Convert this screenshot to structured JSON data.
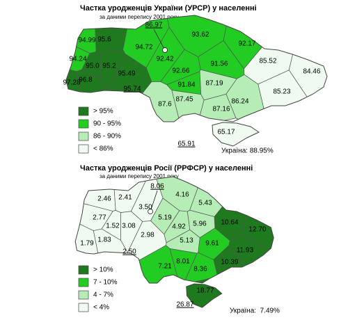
{
  "maps": [
    {
      "title": "Частка уродженців України (УРСР) у населенні",
      "subtitle": "за даними перепису 2001 року",
      "legend": [
        {
          "label": "> 95%",
          "color": "#1f7a1f"
        },
        {
          "label": "90 - 95%",
          "color": "#22cc22"
        },
        {
          "label": "86 - 90%",
          "color": "#b6ecb6"
        },
        {
          "label": "< 86%",
          "color": "#f0faf0"
        }
      ],
      "regions": [
        {
          "label": "94.99",
          "color": "#22cc22"
        },
        {
          "label": "95.6",
          "color": "#1f7a1f"
        },
        {
          "label": "93.62",
          "color": "#22cc22"
        },
        {
          "label": "92.17",
          "color": "#22cc22"
        },
        {
          "label": "94.72",
          "color": "#22cc22"
        },
        {
          "label": "94.24",
          "color": "#22cc22"
        },
        {
          "label": "95.0",
          "color": "#1f7a1f"
        },
        {
          "label": "95.2",
          "color": "#1f7a1f"
        },
        {
          "label": "92.42",
          "color": "#22cc22"
        },
        {
          "label": "91.56",
          "color": "#22cc22"
        },
        {
          "label": "85.52",
          "color": "#f0faf0"
        },
        {
          "label": "92.66",
          "color": "#22cc22"
        },
        {
          "label": "84.46",
          "color": "#f0faf0"
        },
        {
          "label": "97.28",
          "color": "#1f7a1f"
        },
        {
          "label": "96.8",
          "color": "#1f7a1f"
        },
        {
          "label": "95.49",
          "color": "#1f7a1f"
        },
        {
          "label": "91.84",
          "color": "#22cc22"
        },
        {
          "label": "87.19",
          "color": "#b6ecb6"
        },
        {
          "label": "85.23",
          "color": "#f0faf0"
        },
        {
          "label": "87.45",
          "color": "#b6ecb6"
        },
        {
          "label": "87.6",
          "color": "#b6ecb6"
        },
        {
          "label": "86.24",
          "color": "#b6ecb6"
        },
        {
          "label": "87.16",
          "color": "#b6ecb6"
        },
        {
          "label": "65.17",
          "color": "#f0faf0"
        }
      ],
      "outside_labels": [
        "86.97",
        "95.74",
        "65.91"
      ],
      "total": "Україна: 88.95%"
    },
    {
      "title": "Частка уродженців Росії (РРФСР) у населенні",
      "subtitle": "за даними перепису 2001 року",
      "legend": [
        {
          "label": "> 10%",
          "color": "#1f7a1f"
        },
        {
          "label": "7 - 10%",
          "color": "#22cc22"
        },
        {
          "label": "4 - 7%",
          "color": "#b6ecb6"
        },
        {
          "label": "< 4%",
          "color": "#f0faf0"
        }
      ],
      "regions": [
        {
          "label": "2.46",
          "color": "#f0faf0"
        },
        {
          "label": "2.41",
          "color": "#f0faf0"
        },
        {
          "label": "4.16",
          "color": "#b6ecb6"
        },
        {
          "label": "5.43",
          "color": "#b6ecb6"
        },
        {
          "label": "2.77",
          "color": "#f0faf0"
        },
        {
          "label": "3.50",
          "color": "#f0faf0"
        },
        {
          "label": "5.19",
          "color": "#b6ecb6"
        },
        {
          "label": "10.64",
          "color": "#1f7a1f"
        },
        {
          "label": "12.70",
          "color": "#1f7a1f"
        },
        {
          "label": "1.52",
          "color": "#f0faf0"
        },
        {
          "label": "3.08",
          "color": "#f0faf0"
        },
        {
          "label": "4.92",
          "color": "#b6ecb6"
        },
        {
          "label": "5.96",
          "color": "#b6ecb6"
        },
        {
          "label": "1.79",
          "color": "#f0faf0"
        },
        {
          "label": "1.83",
          "color": "#f0faf0"
        },
        {
          "label": "2.98",
          "color": "#f0faf0"
        },
        {
          "label": "5.13",
          "color": "#b6ecb6"
        },
        {
          "label": "9.61",
          "color": "#22cc22"
        },
        {
          "label": "11.93",
          "color": "#1f7a1f"
        },
        {
          "label": "7.21",
          "color": "#22cc22"
        },
        {
          "label": "8.01",
          "color": "#22cc22"
        },
        {
          "label": "10.39",
          "color": "#1f7a1f"
        },
        {
          "label": "8.36",
          "color": "#22cc22"
        },
        {
          "label": "18.77",
          "color": "#1f7a1f"
        }
      ],
      "outside_labels": [
        "8.06",
        "2.50",
        "26.87"
      ],
      "total": "Україна:  7.49%"
    }
  ]
}
